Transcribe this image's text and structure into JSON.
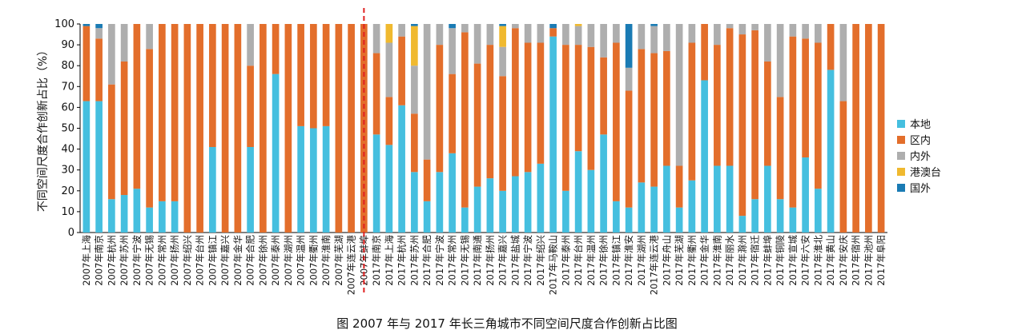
{
  "chart_data": {
    "type": "bar",
    "stacked": true,
    "ylabel": "不同空间尺度合作创新占比（%）",
    "ylim": [
      0,
      100
    ],
    "yticks": [
      0,
      10,
      20,
      30,
      40,
      50,
      60,
      70,
      80,
      90,
      100
    ],
    "legend_position": "right",
    "divider_after_category": 18,
    "caption": "图 2007 年与 2017 年长三角城市不同空间尺度合作创新占比图",
    "categories": [
      "2007年上海",
      "2007年南京",
      "2007年杭州",
      "2007年苏州",
      "2007年宁波",
      "2007年无锡",
      "2007年常州",
      "2007年扬州",
      "2007年绍兴",
      "2007年台州",
      "2007年镇江",
      "2007年嘉兴",
      "2007年金华",
      "2007年合肥",
      "2007年徐州",
      "2007年泰州",
      "2007年湖州",
      "2007年温州",
      "2007年衢州",
      "2007年淮南",
      "2007年芜湖",
      "2007年连云港",
      "2007年蚌埠",
      "2017年南京",
      "2017年上海",
      "2017年杭州",
      "2017年苏州",
      "2017年合肥",
      "2017年宁波",
      "2017年常州",
      "2017年无锡",
      "2017年南通",
      "2017年扬州",
      "2017年嘉兴",
      "2017年盐城",
      "2017年宁波",
      "2017年绍兴",
      "2017年马鞍山",
      "2017年泰州",
      "2017年台州",
      "2017年温州",
      "2017年徐州",
      "2017年镇江",
      "2017年淮安",
      "2017年湖州",
      "2017年连云港",
      "2017年舟山",
      "2017年芜湖",
      "2017年衢州",
      "2017年金华",
      "2017年淮南",
      "2017年丽水",
      "2017年滁州",
      "2017年宿迁",
      "2017年蚌埠",
      "2017年铜陵",
      "2017年宣城",
      "2017年六安",
      "2017年淮北",
      "2017年黄山",
      "2017年安庆",
      "2017年宿州",
      "2017年池州",
      "2017年阜阳"
    ],
    "series": [
      {
        "name": "本地",
        "color": "#45bfdf",
        "values": [
          63,
          63,
          16,
          18,
          21,
          12,
          15,
          15,
          0,
          0,
          41,
          0,
          0,
          41,
          0,
          76,
          0,
          51,
          50,
          51,
          0,
          0,
          0,
          47,
          42,
          61,
          29,
          15,
          29,
          38,
          12,
          22,
          26,
          20,
          27,
          29,
          33,
          94,
          20,
          39,
          30,
          47,
          15,
          12,
          24,
          22,
          32,
          12,
          25,
          73,
          32,
          32,
          8,
          16,
          32,
          16,
          12,
          36,
          21,
          78,
          0,
          0,
          0,
          0
        ]
      },
      {
        "name": "区内",
        "color": "#e36e2b",
        "values": [
          36,
          30,
          55,
          64,
          79,
          76,
          85,
          85,
          100,
          100,
          59,
          100,
          100,
          39,
          100,
          24,
          100,
          49,
          50,
          49,
          100,
          100,
          100,
          39,
          23,
          33,
          28,
          20,
          61,
          38,
          84,
          59,
          64,
          55,
          71,
          62,
          58,
          4,
          70,
          51,
          59,
          37,
          76,
          56,
          64,
          64,
          55,
          20,
          66,
          27,
          58,
          66,
          87,
          81,
          50,
          49,
          82,
          57,
          70,
          22,
          63,
          100,
          100,
          100
        ]
      },
      {
        "name": "内外",
        "color": "#aeaeae",
        "values": [
          0,
          5,
          29,
          18,
          0,
          12,
          0,
          0,
          0,
          0,
          0,
          0,
          0,
          20,
          0,
          0,
          0,
          0,
          0,
          0,
          0,
          0,
          0,
          14,
          26,
          6,
          23,
          65,
          10,
          22,
          4,
          19,
          10,
          14,
          2,
          9,
          9,
          0,
          10,
          9,
          11,
          16,
          9,
          11,
          12,
          13,
          13,
          68,
          9,
          0,
          10,
          2,
          5,
          3,
          18,
          35,
          6,
          7,
          9,
          0,
          37,
          0,
          0,
          0
        ]
      },
      {
        "name": "港澳台",
        "color": "#f0b92f",
        "values": [
          0,
          0,
          0,
          0,
          0,
          0,
          0,
          0,
          0,
          0,
          0,
          0,
          0,
          0,
          0,
          0,
          0,
          0,
          0,
          0,
          0,
          0,
          0,
          0,
          9,
          0,
          19,
          0,
          0,
          0,
          0,
          0,
          0,
          10,
          0,
          0,
          0,
          0,
          0,
          1,
          0,
          0,
          0,
          0,
          0,
          0,
          0,
          0,
          0,
          0,
          0,
          0,
          0,
          0,
          0,
          0,
          0,
          0,
          0,
          0,
          0,
          0,
          0,
          0
        ]
      },
      {
        "name": "国外",
        "color": "#1a7bb4",
        "values": [
          1,
          2,
          0,
          0,
          0,
          0,
          0,
          0,
          0,
          0,
          0,
          0,
          0,
          0,
          0,
          0,
          0,
          0,
          0,
          0,
          0,
          0,
          0,
          0,
          0,
          0,
          1,
          0,
          0,
          2,
          0,
          0,
          0,
          1,
          0,
          0,
          0,
          2,
          0,
          0,
          0,
          0,
          0,
          21,
          0,
          1,
          0,
          0,
          0,
          0,
          0,
          0,
          0,
          0,
          0,
          0,
          0,
          0,
          0,
          0,
          0,
          0,
          0,
          0
        ]
      }
    ]
  }
}
